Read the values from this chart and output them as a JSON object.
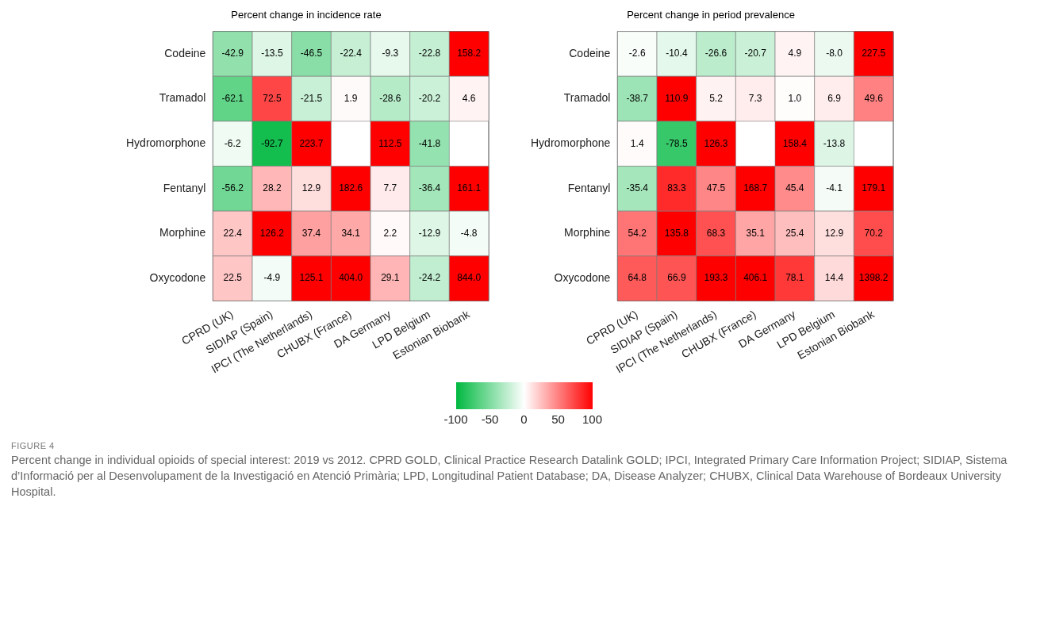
{
  "chart_data": [
    {
      "type": "heatmap",
      "title": "Percent change in incidence rate",
      "categories": [
        "CPRD (UK)",
        "SIDIAP (Spain)",
        "IPCI (The Netherlands)",
        "CHUBX (France)",
        "DA Germany",
        "LPD Belgium",
        "Estonian Biobank"
      ],
      "y_categories": [
        "Codeine",
        "Tramadol",
        "Hydromorphone",
        "Fentanyl",
        "Morphine",
        "Oxycodone"
      ],
      "cells": [
        [
          -42.9,
          -13.5,
          -46.5,
          -22.4,
          -9.3,
          -22.8,
          158.2
        ],
        [
          -62.1,
          72.5,
          -21.5,
          1.9,
          -28.6,
          -20.2,
          4.6
        ],
        [
          -6.2,
          -92.7,
          223.7,
          null,
          112.5,
          -41.8,
          null
        ],
        [
          -56.2,
          28.2,
          12.9,
          182.6,
          7.7,
          -36.4,
          161.1
        ],
        [
          22.4,
          126.2,
          37.4,
          34.1,
          2.2,
          -12.9,
          -4.8
        ],
        [
          22.5,
          -4.9,
          125.1,
          404.0,
          29.1,
          -24.2,
          844.0
        ]
      ],
      "cell_labels": [
        [
          "-42.9",
          "-13.5",
          "-46.5",
          "-22.4",
          "-9.3",
          "-22.8",
          "158.2"
        ],
        [
          "-62.1",
          "72.5",
          "-21.5",
          "1.9",
          "-28.6",
          "-20.2",
          "4.6"
        ],
        [
          "-6.2",
          "-92.7",
          "223.7",
          null,
          "112.5",
          "-41.8",
          null
        ],
        [
          "-56.2",
          "28.2",
          "12.9",
          "182.6",
          "7.7",
          "-36.4",
          "161.1"
        ],
        [
          "22.4",
          "126.2",
          "37.4",
          "34.1",
          "2.2",
          "-12.9",
          "-4.8"
        ],
        [
          "22.5",
          "-4.9",
          "125.1",
          "404.0",
          "29.1",
          "-24.2",
          "844.0"
        ]
      ],
      "data_labels": true,
      "clim": [
        -100,
        100
      ],
      "cticks": [
        -100,
        -50,
        0,
        50,
        100
      ],
      "annotations": [
        "FIGURE 4",
        "Percent change in individual opioids of special interest: 2019 vs 2012. CPRD GOLD, Clinical Practice Research Datalink GOLD; IPCI, Integrated Primary Care Information Project; SIDIAP, Sistema d’Informació per al Desenvolupament de la Investigació en Atenció Primària; LPD, Longitudinal Patient Database; DA, Disease Analyzer; CHUBX, Clinical Data Warehouse of Bordeaux University Hospital."
      ]
    },
    {
      "type": "heatmap",
      "title": "Percent change in period prevalence",
      "categories": [
        "CPRD (UK)",
        "SIDIAP (Spain)",
        "IPCI (The Netherlands)",
        "CHUBX (France)",
        "DA Germany",
        "LPD Belgium",
        "Estonian Biobank"
      ],
      "y_categories": [
        "Codeine",
        "Tramadol",
        "Hydromorphone",
        "Fentanyl",
        "Morphine",
        "Oxycodone"
      ],
      "cells": [
        [
          -2.6,
          -10.4,
          -26.6,
          -20.7,
          4.9,
          -8.0,
          227.5
        ],
        [
          -38.7,
          110.9,
          5.2,
          7.3,
          1.0,
          6.9,
          49.6
        ],
        [
          1.4,
          -78.5,
          126.3,
          null,
          158.4,
          -13.8,
          null
        ],
        [
          -35.4,
          83.3,
          47.5,
          168.7,
          45.4,
          -4.1,
          179.1
        ],
        [
          54.2,
          135.8,
          68.3,
          35.1,
          25.4,
          12.9,
          70.2
        ],
        [
          64.8,
          66.9,
          193.3,
          406.1,
          78.1,
          14.4,
          1398.2
        ]
      ],
      "cell_labels": [
        [
          "-2.6",
          "-10.4",
          "-26.6",
          "-20.7",
          "4.9",
          "-8.0",
          "227.5"
        ],
        [
          "-38.7",
          "110.9",
          "5.2",
          "7.3",
          "1.0",
          "6.9",
          "49.6"
        ],
        [
          "1.4",
          "-78.5",
          "126.3",
          null,
          "158.4",
          "-13.8",
          null
        ],
        [
          "-35.4",
          "83.3",
          "47.5",
          "168.7",
          "45.4",
          "-4.1",
          "179.1"
        ],
        [
          "54.2",
          "135.8",
          "68.3",
          "35.1",
          "25.4",
          "12.9",
          "70.2"
        ],
        [
          "64.8",
          "66.9",
          "193.3",
          "406.1",
          "78.1",
          "14.4",
          "1398.2"
        ]
      ],
      "data_labels": true
    }
  ]
}
